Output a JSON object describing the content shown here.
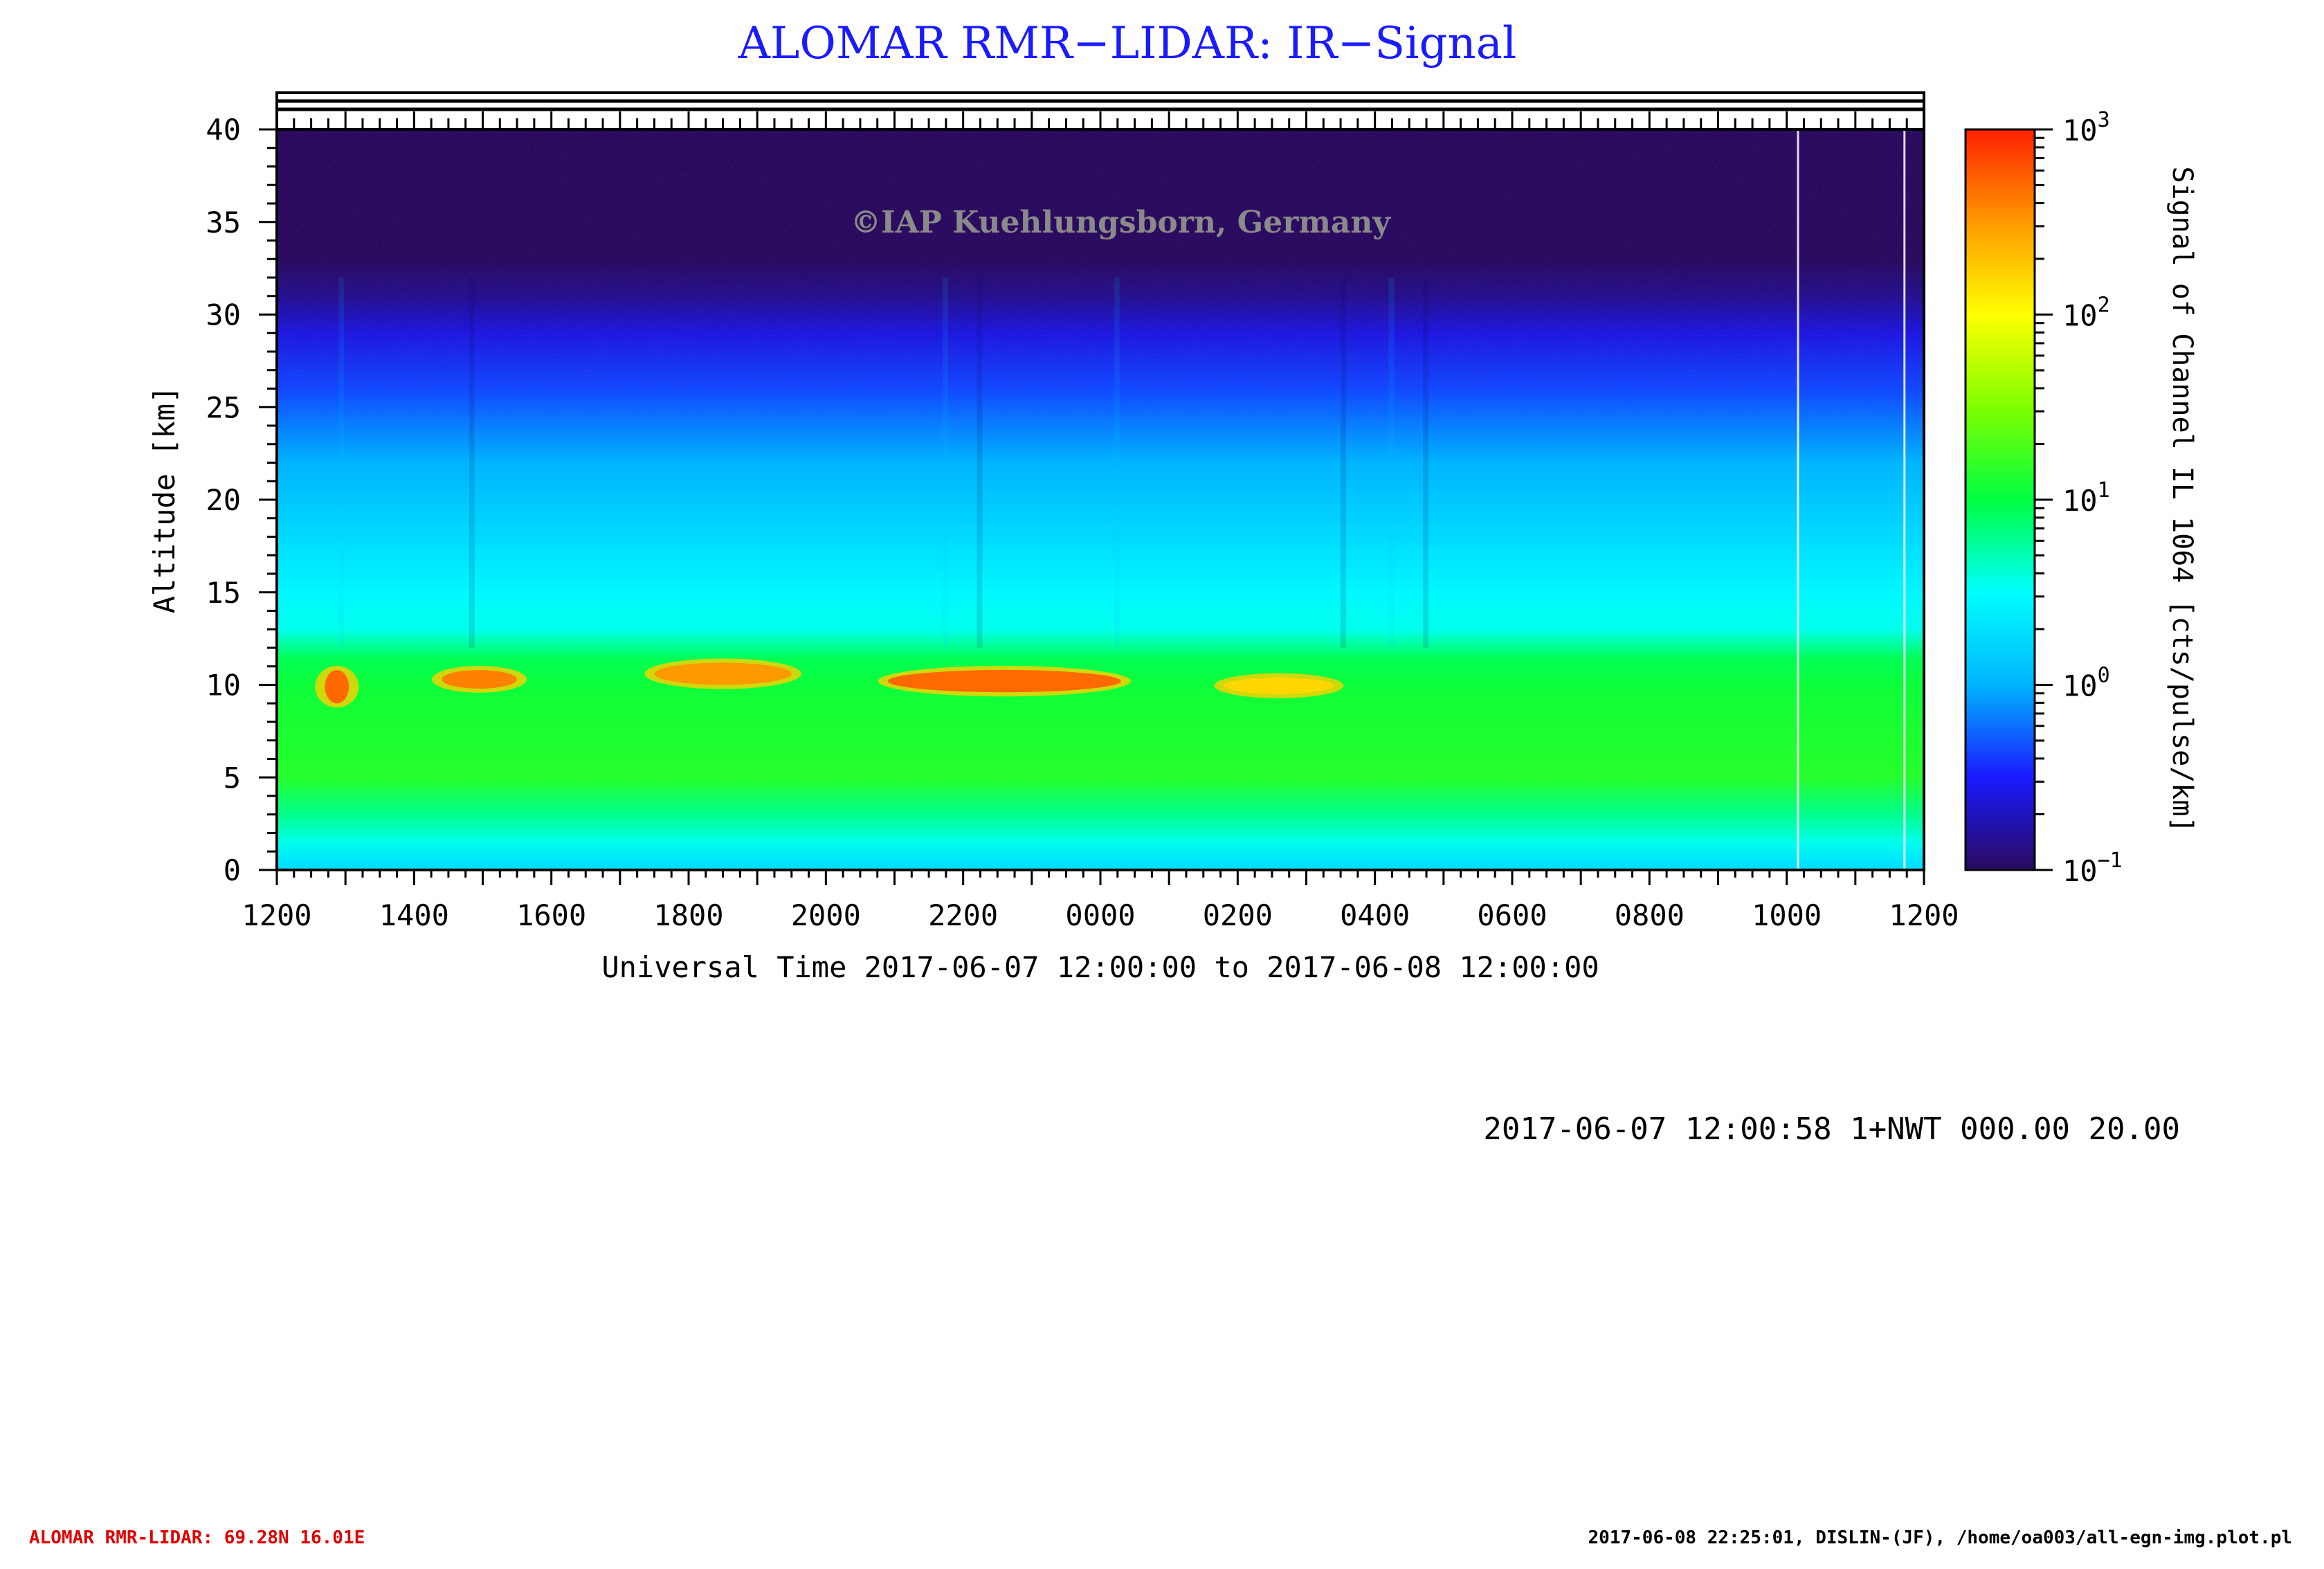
{
  "title": "ALOMAR RMR−LIDAR: IR−Signal",
  "watermark": "©IAP Kuehlungsborn, Germany",
  "run_info": "2017-06-07 12:00:58 1+NWT 000.00 20.00",
  "footer_left": "ALOMAR RMR-LIDAR: 69.28N 16.01E",
  "footer_right": "2017-06-08 22:25:01, DISLIN-(JF), /home/oa003/all-egn-img.plot.pl",
  "colors": {
    "title": "#1a1aff",
    "footer_left": "#e00000",
    "watermark": "#8a8a8a",
    "colormap": [
      "#2a0a5e",
      "#1a1aff",
      "#00b4ff",
      "#00ffff",
      "#00ff40",
      "#80ff00",
      "#ffff00",
      "#ff9900",
      "#ff2000"
    ]
  },
  "chart_data": {
    "type": "heatmap",
    "title": "ALOMAR RMR−LIDAR: IR−Signal",
    "xlabel": "Universal Time 2017-06-07 12:00:00 to 2017-06-08 12:00:00",
    "ylabel": "Altitude [km]",
    "x_tick_labels": [
      "1200",
      "1400",
      "1600",
      "1800",
      "2000",
      "2200",
      "0000",
      "0200",
      "0400",
      "0600",
      "0800",
      "1000",
      "1200"
    ],
    "x_range_hours": [
      0,
      24
    ],
    "y_tick_labels": [
      "0",
      "5",
      "10",
      "15",
      "20",
      "25",
      "30",
      "35",
      "40"
    ],
    "ylim": [
      0,
      40
    ],
    "colorbar": {
      "label": "Signal of Channel IL 1064 [cts/pulse/km]",
      "scale": "log",
      "range": [
        0.1,
        1000
      ],
      "ticks": [
        {
          "base": "10",
          "exp": "3",
          "value": 1000
        },
        {
          "base": "10",
          "exp": "2",
          "value": 100
        },
        {
          "base": "10",
          "exp": "1",
          "value": 10
        },
        {
          "base": "10",
          "exp": "0",
          "value": 1
        },
        {
          "base": "10",
          "exp": "−1",
          "value": 0.1
        }
      ]
    },
    "profile_altitude_km": [
      0,
      0.3,
      1.5,
      3,
      5,
      8,
      10,
      11.4,
      13,
      15,
      18,
      22,
      26,
      29,
      31,
      33,
      35,
      40
    ],
    "profile_signal_log10": [
      0.3,
      0.3,
      0.55,
      0.8,
      1.15,
      1.1,
      1.05,
      0.95,
      0.55,
      0.45,
      0.25,
      0.0,
      -0.35,
      -0.6,
      -0.85,
      -1.0,
      -1.1,
      -1.2
    ],
    "cloud_patches": [
      {
        "t_start_h": 0.7,
        "t_end_h": 1.05,
        "alt_low_km": 9.0,
        "alt_high_km": 10.8,
        "log10_signal": 2.7
      },
      {
        "t_start_h": 2.4,
        "t_end_h": 3.5,
        "alt_low_km": 9.8,
        "alt_high_km": 10.8,
        "log10_signal": 2.6
      },
      {
        "t_start_h": 5.5,
        "t_end_h": 7.5,
        "alt_low_km": 10.0,
        "alt_high_km": 11.2,
        "log10_signal": 2.5
      },
      {
        "t_start_h": 8.9,
        "t_end_h": 12.3,
        "alt_low_km": 9.6,
        "alt_high_km": 10.8,
        "log10_signal": 2.7
      },
      {
        "t_start_h": 13.8,
        "t_end_h": 15.4,
        "alt_low_km": 9.5,
        "alt_high_km": 10.4,
        "log10_signal": 2.2
      }
    ],
    "data_gaps_hours": [
      22.15,
      23.7
    ]
  }
}
